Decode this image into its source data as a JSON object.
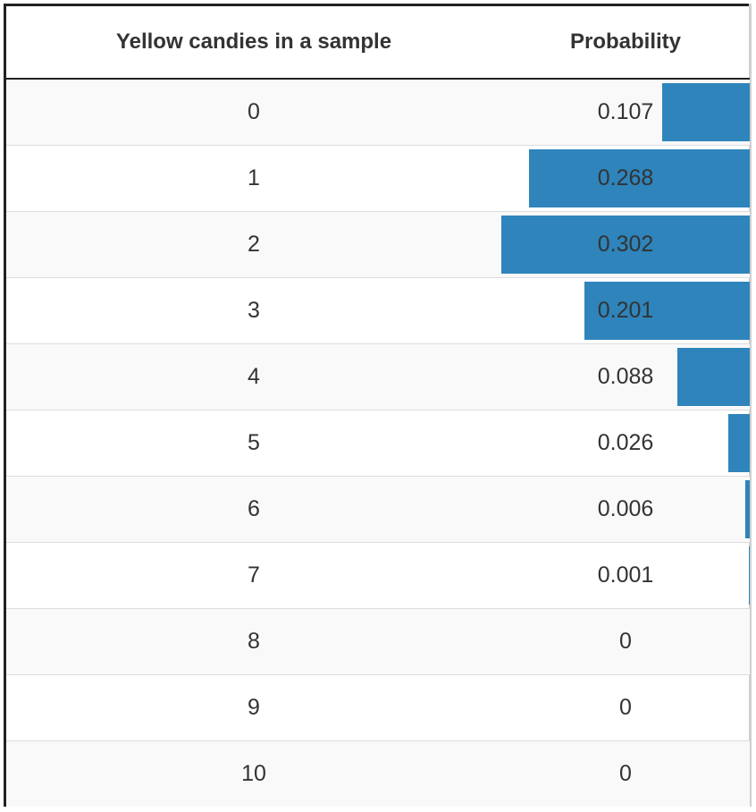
{
  "chart_data": {
    "type": "table",
    "columns": [
      "Yellow candies in a sample",
      "Probability"
    ],
    "rows": [
      {
        "count": "0",
        "probability": 0.107
      },
      {
        "count": "1",
        "probability": 0.268
      },
      {
        "count": "2",
        "probability": 0.302
      },
      {
        "count": "3",
        "probability": 0.201
      },
      {
        "count": "4",
        "probability": 0.088
      },
      {
        "count": "5",
        "probability": 0.026
      },
      {
        "count": "6",
        "probability": 0.006
      },
      {
        "count": "7",
        "probability": 0.001
      },
      {
        "count": "8",
        "probability": 0
      },
      {
        "count": "9",
        "probability": 0
      },
      {
        "count": "10",
        "probability": 0
      }
    ],
    "bar_color": "#2e84bb",
    "stripe_color": "#f9f9f9"
  }
}
